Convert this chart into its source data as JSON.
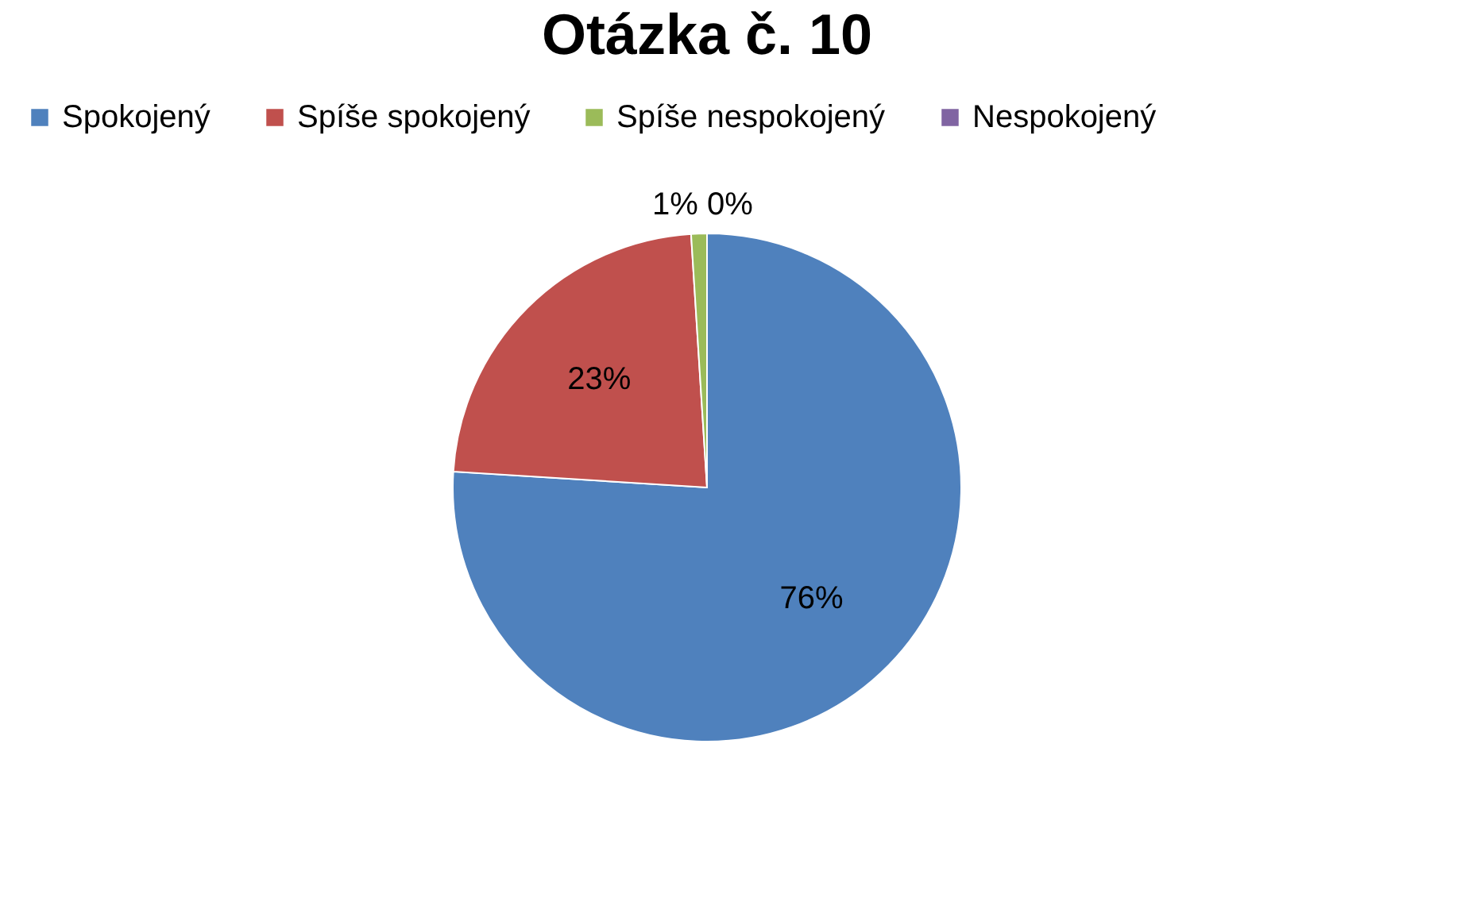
{
  "chart_data": {
    "type": "pie",
    "title": "Otázka č. 10",
    "categories": [
      "Spokojený",
      "Spíše spokojený",
      "Spíše nespokojený",
      "Nespokojený"
    ],
    "values": [
      76,
      23,
      1,
      0
    ],
    "colors": [
      "#4f81bd",
      "#c0504d",
      "#9bbb59",
      "#8064a2"
    ],
    "value_labels": [
      "76%",
      "23%",
      "1%",
      "0%"
    ],
    "legend": "top"
  }
}
